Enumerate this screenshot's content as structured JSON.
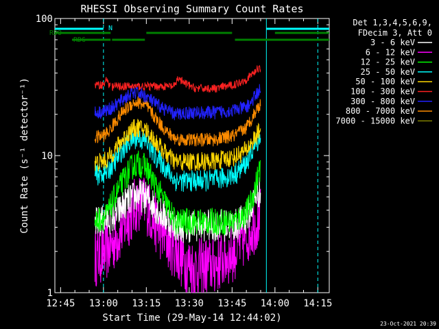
{
  "chart_data": {
    "type": "line",
    "title": "RHESSI Observing Summary Count Rates",
    "xlabel": "Start Time (29-May-14 12:44:02)",
    "ylabel": "Count Rate (s⁻¹ detector⁻¹)",
    "yscale": "log",
    "ylim": [
      1,
      100
    ],
    "xlim_minutes": [
      -1,
      95
    ],
    "x_tick_labels": [
      "12:45",
      "13:00",
      "13:15",
      "13:30",
      "13:45",
      "14:00",
      "14:15"
    ],
    "x_tick_minutes": [
      1,
      16,
      31,
      46,
      61,
      76,
      91
    ],
    "y_tick_labels": [
      "1",
      "10",
      "100"
    ],
    "y_tick_values": [
      1,
      10,
      100
    ],
    "legend_header": [
      "Det 1,3,4,5,6,9,",
      "FDecim 3, Att 0"
    ],
    "legend_position": "right",
    "series": [
      {
        "name": "3 - 6 keV",
        "color": "#ffffff",
        "points": [
          [
            13,
            3.2
          ],
          [
            20,
            3.6
          ],
          [
            24,
            4.6
          ],
          [
            28,
            5.2
          ],
          [
            32,
            4.8
          ],
          [
            36,
            3.8
          ],
          [
            41,
            3.1
          ],
          [
            45,
            3.0
          ],
          [
            48,
            3.1
          ],
          [
            55,
            3.1
          ],
          [
            62,
            3.1
          ],
          [
            66,
            3.5
          ],
          [
            68,
            4.3
          ],
          [
            69,
            5.0
          ],
          [
            70,
            5.5
          ],
          [
            71,
            5.3
          ]
        ]
      },
      {
        "name": "6 - 12 keV",
        "color": "#ff00ff",
        "points": [
          [
            13,
            1.8
          ],
          [
            17,
            2.0
          ],
          [
            20,
            2.4
          ],
          [
            24,
            3.3
          ],
          [
            28,
            4.6
          ],
          [
            31,
            4.4
          ],
          [
            35,
            3.0
          ],
          [
            40,
            2.2
          ],
          [
            44,
            1.7
          ],
          [
            48,
            1.5
          ],
          [
            55,
            1.6
          ],
          [
            62,
            2.0
          ],
          [
            66,
            2.6
          ],
          [
            68,
            3.0
          ],
          [
            71,
            3.6
          ]
        ]
      },
      {
        "name": "12 - 25 keV",
        "color": "#00ff00",
        "points": [
          [
            13,
            3.3
          ],
          [
            17,
            3.6
          ],
          [
            20,
            5.0
          ],
          [
            23,
            6.6
          ],
          [
            26,
            8.3
          ],
          [
            28,
            8.8
          ],
          [
            31,
            8.2
          ],
          [
            34,
            6.1
          ],
          [
            38,
            4.4
          ],
          [
            41,
            3.3
          ],
          [
            45,
            3.3
          ],
          [
            55,
            3.3
          ],
          [
            62,
            3.3
          ],
          [
            66,
            3.8
          ],
          [
            68,
            4.8
          ],
          [
            70,
            7.0
          ],
          [
            71,
            8.5
          ]
        ]
      },
      {
        "name": "25 - 50 keV",
        "color": "#00ffff",
        "points": [
          [
            13,
            7.2
          ],
          [
            17,
            7.5
          ],
          [
            20,
            9.0
          ],
          [
            23,
            11.3
          ],
          [
            26,
            13.2
          ],
          [
            28,
            13.5
          ],
          [
            31,
            12.6
          ],
          [
            34,
            10.0
          ],
          [
            38,
            8.0
          ],
          [
            41,
            6.6
          ],
          [
            45,
            6.5
          ],
          [
            55,
            6.6
          ],
          [
            62,
            7.3
          ],
          [
            66,
            8.8
          ],
          [
            68,
            10.8
          ],
          [
            70,
            13.0
          ],
          [
            71,
            14.0
          ]
        ]
      },
      {
        "name": "50 - 100 keV",
        "color": "#ffd700",
        "points": [
          [
            13,
            8.8
          ],
          [
            17,
            9.2
          ],
          [
            20,
            11.0
          ],
          [
            23,
            13.3
          ],
          [
            26,
            15.5
          ],
          [
            28,
            16.0
          ],
          [
            31,
            15.3
          ],
          [
            34,
            12.8
          ],
          [
            38,
            10.3
          ],
          [
            41,
            9.0
          ],
          [
            45,
            9.0
          ],
          [
            55,
            9.1
          ],
          [
            62,
            9.8
          ],
          [
            66,
            11.0
          ],
          [
            68,
            12.5
          ],
          [
            70,
            14.5
          ],
          [
            71,
            15.5
          ]
        ]
      },
      {
        "name": "100 - 300 keV",
        "color": "#ff2222",
        "points": [
          [
            13,
            32.5
          ],
          [
            16,
            33.0
          ],
          [
            17.5,
            36.5
          ],
          [
            18,
            32.0
          ],
          [
            41,
            32.0
          ],
          [
            42,
            37.0
          ],
          [
            44,
            34.0
          ],
          [
            48,
            31.0
          ],
          [
            55,
            30.8
          ],
          [
            62,
            33.0
          ],
          [
            66,
            36.0
          ],
          [
            69,
            41.0
          ],
          [
            70,
            43.0
          ],
          [
            70.5,
            44.5
          ],
          [
            71,
            43.0
          ]
        ]
      },
      {
        "name": "300 - 800 keV",
        "color": "#2222ff",
        "points": [
          [
            13,
            20.5
          ],
          [
            16,
            21.0
          ],
          [
            17.5,
            21.5
          ],
          [
            20,
            23.0
          ],
          [
            23,
            26.0
          ],
          [
            26,
            28.5
          ],
          [
            28,
            28.8
          ],
          [
            31,
            27.0
          ],
          [
            34,
            24.0
          ],
          [
            38,
            21.5
          ],
          [
            41,
            20.0
          ],
          [
            45,
            20.5
          ],
          [
            55,
            20.6
          ],
          [
            62,
            21.5
          ],
          [
            66,
            22.5
          ],
          [
            68,
            25.0
          ],
          [
            70,
            29.0
          ],
          [
            71,
            31.0
          ]
        ]
      },
      {
        "name": "800 - 7000 keV",
        "color": "#ff8c00",
        "points": [
          [
            13,
            13.5
          ],
          [
            16,
            14.0
          ],
          [
            18,
            15.0
          ],
          [
            20,
            17.5
          ],
          [
            23,
            21.0
          ],
          [
            26,
            24.0
          ],
          [
            28,
            24.5
          ],
          [
            31,
            23.0
          ],
          [
            34,
            19.0
          ],
          [
            38,
            15.0
          ],
          [
            41,
            13.3
          ],
          [
            45,
            13.0
          ],
          [
            55,
            13.1
          ],
          [
            62,
            14.0
          ],
          [
            66,
            16.0
          ],
          [
            68,
            19.0
          ],
          [
            70,
            22.5
          ],
          [
            71,
            24.0
          ]
        ]
      }
    ],
    "legend_extra": [
      {
        "name": "7000 - 15000 keV",
        "color": "#808000"
      }
    ],
    "status_bars": [
      {
        "label": "RD0",
        "color": "#008000",
        "segments": [
          [
            -1,
            18.5
          ],
          [
            31,
            61
          ],
          [
            76,
            95
          ]
        ],
        "level": "rd0"
      },
      {
        "label": "RD6",
        "color": "#008000",
        "segments": [
          [
            5,
            18.5
          ],
          [
            19,
            30.5
          ],
          [
            62,
            95
          ]
        ],
        "level": "rd6"
      },
      {
        "label": "N",
        "color": "#00ffff",
        "segments": [
          [
            -1,
            16
          ]
        ],
        "level": "n"
      },
      {
        "label": "",
        "color": "#00ffff",
        "segments": [
          [
            73,
            95
          ]
        ],
        "level": "n"
      }
    ],
    "vlines": [
      {
        "x": 16,
        "color": "#00ffff",
        "dashed": true
      },
      {
        "x": 73,
        "color": "#00ffff",
        "dashed": false
      },
      {
        "x": 91,
        "color": "#00ffff",
        "dashed": true
      }
    ],
    "timestamp": "23-Oct-2021 20:39"
  }
}
